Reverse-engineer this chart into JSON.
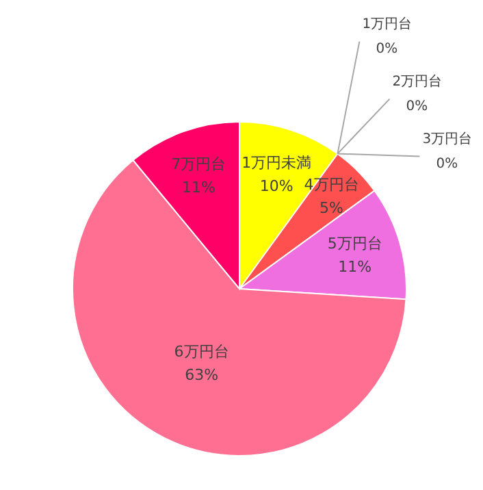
{
  "chart_data": {
    "type": "pie",
    "categories": [
      "1万円未満",
      "1万円台",
      "2万円台",
      "3万円台",
      "4万円台",
      "5万円台",
      "6万円台",
      "7万円台"
    ],
    "values": [
      10,
      0,
      0,
      0,
      5,
      11,
      63,
      11
    ],
    "value_labels": [
      "10%",
      "0%",
      "0%",
      "0%",
      "5%",
      "11%",
      "63%",
      "11%"
    ],
    "colors": [
      "#ffff00",
      "#ffc000",
      "#ff9900",
      "#ff7f7f",
      "#ff5050",
      "#ef6fe0",
      "#ff6f91",
      "#ff0066"
    ],
    "legend": false
  }
}
